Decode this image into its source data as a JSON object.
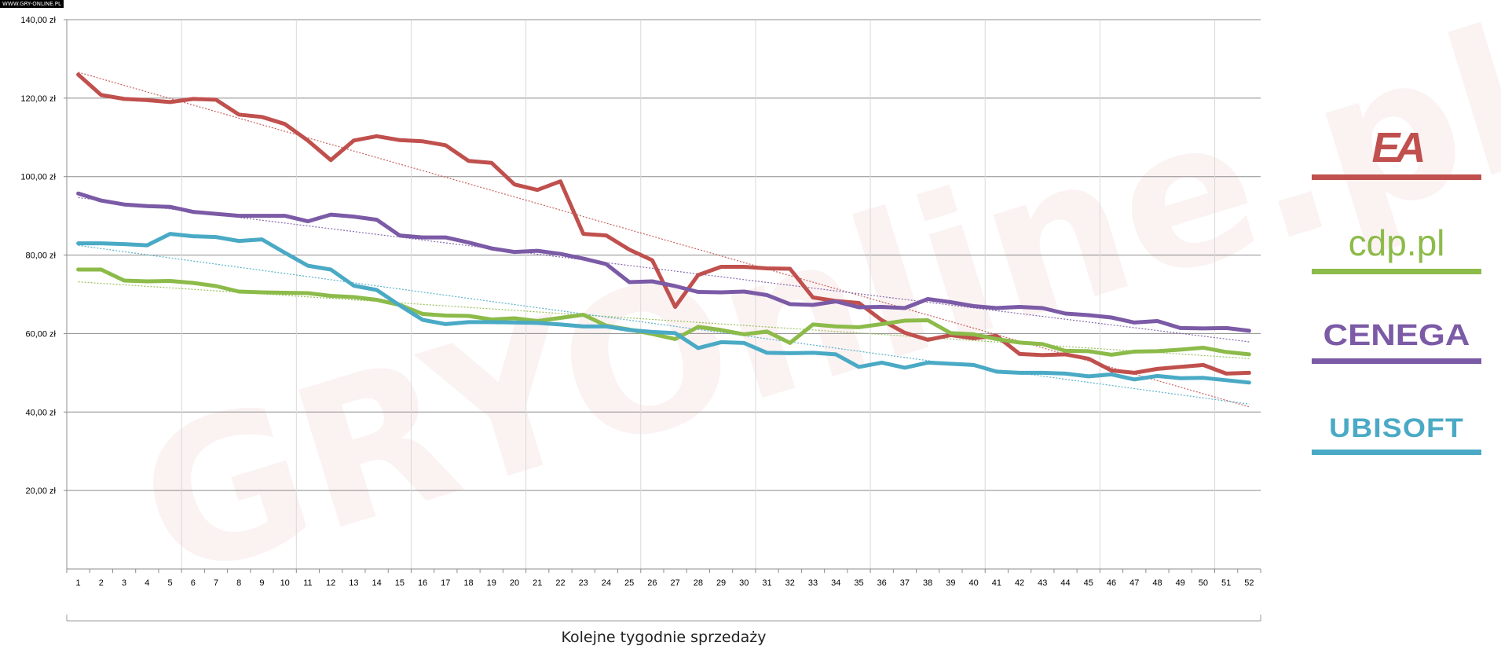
{
  "watermark_badge": "WWW.GRY-ONLINE.PL",
  "watermark_text": "GRYOnline.pl",
  "legend": [
    {
      "label": "EA",
      "color": "#c0504d"
    },
    {
      "label": "cdp.pl",
      "color": "#8cbb4a"
    },
    {
      "label": "CENEGA",
      "color": "#7b5aa6"
    },
    {
      "label": "UBISOFT",
      "color": "#4aaac5"
    }
  ],
  "chart_data": {
    "type": "line",
    "xlabel": "Kolejne tygodnie sprzedaży",
    "ylabel": "",
    "ylim": [
      0,
      140
    ],
    "y_ticks": [
      "20,00 zł",
      "40,00 zł",
      "60,00 zł",
      "80,00 zł",
      "100,00 zł",
      "120,00 zł",
      "140,00 zł"
    ],
    "y_tick_values": [
      20,
      40,
      60,
      80,
      100,
      120,
      140
    ],
    "x": [
      1,
      2,
      3,
      4,
      5,
      6,
      7,
      8,
      9,
      10,
      11,
      12,
      13,
      14,
      15,
      16,
      17,
      18,
      19,
      20,
      21,
      22,
      23,
      24,
      25,
      26,
      27,
      28,
      29,
      30,
      31,
      32,
      33,
      34,
      35,
      36,
      37,
      38,
      39,
      40,
      41,
      42,
      43,
      44,
      45,
      46,
      47,
      48,
      49,
      50,
      51,
      52
    ],
    "grid": "both",
    "trendlines": true,
    "series": [
      {
        "name": "EA",
        "color": "#c0504d",
        "values": [
          126,
          120.8,
          119.8,
          119.5,
          119,
          119.8,
          119.6,
          115.8,
          115.2,
          113.4,
          109.2,
          104.2,
          109.2,
          110.3,
          109.3,
          109,
          108,
          104,
          103.5,
          98,
          96.6,
          98.8,
          85.4,
          85,
          81.4,
          78.7,
          66.8,
          74.9,
          77,
          77,
          76.6,
          76.5,
          69.2,
          68.3,
          67.8,
          63.4,
          60.2,
          58.4,
          59.6,
          58.8,
          59.4,
          54.8,
          54.5,
          54.7,
          53.6,
          50.6,
          50,
          51,
          51.5,
          52,
          49.8,
          50
        ]
      },
      {
        "name": "cdp.pl",
        "color": "#8cbb4a",
        "values": [
          76.3,
          76.3,
          73.5,
          73.3,
          73.4,
          72.9,
          72.1,
          70.7,
          70.5,
          70.4,
          70.3,
          69.6,
          69.3,
          68.6,
          67.3,
          65,
          64.6,
          64.5,
          63.6,
          63.9,
          63.2,
          64,
          64.8,
          62,
          61,
          59.9,
          58.6,
          61.7,
          60.9,
          59.8,
          60.5,
          57.6,
          62.3,
          61.8,
          61.6,
          62.4,
          63.3,
          63.4,
          60.1,
          59.8,
          58.6,
          57.7,
          57.3,
          55.6,
          55.5,
          54.6,
          55.4,
          55.5,
          55.9,
          56.4,
          55.3,
          54.7
        ]
      },
      {
        "name": "CENEGA",
        "color": "#7b5aa6",
        "values": [
          95.7,
          93.9,
          92.9,
          92.5,
          92.3,
          91,
          90.5,
          90,
          90,
          90,
          88.6,
          90.3,
          89.8,
          89,
          85,
          84.5,
          84.5,
          83.2,
          81.7,
          80.8,
          81.1,
          80.3,
          79.1,
          77.7,
          73.1,
          73.3,
          72.1,
          70.6,
          70.5,
          70.7,
          69.8,
          67.5,
          67.3,
          68.2,
          66.7,
          66.8,
          66.5,
          68.8,
          68,
          67,
          66.5,
          66.8,
          66.5,
          65.1,
          64.7,
          64.1,
          62.8,
          63.2,
          61.4,
          61.3,
          61.4,
          60.7
        ]
      },
      {
        "name": "UBISOFT",
        "color": "#4aaac5",
        "values": [
          83,
          83,
          82.8,
          82.5,
          85.4,
          84.8,
          84.6,
          83.6,
          84,
          80.6,
          77.3,
          76.3,
          72.2,
          71.1,
          67.2,
          63.5,
          62.4,
          62.9,
          62.9,
          62.8,
          62.7,
          62.3,
          61.8,
          61.8,
          60.9,
          60.4,
          60.1,
          56.3,
          57.8,
          57.6,
          55.1,
          55,
          55.1,
          54.7,
          51.5,
          52.6,
          51.3,
          52.6,
          52.3,
          52,
          50.3,
          50,
          50,
          49.8,
          49.1,
          49.6,
          48.3,
          49.2,
          48.6,
          48.7,
          48.1,
          47.5
        ]
      }
    ]
  }
}
